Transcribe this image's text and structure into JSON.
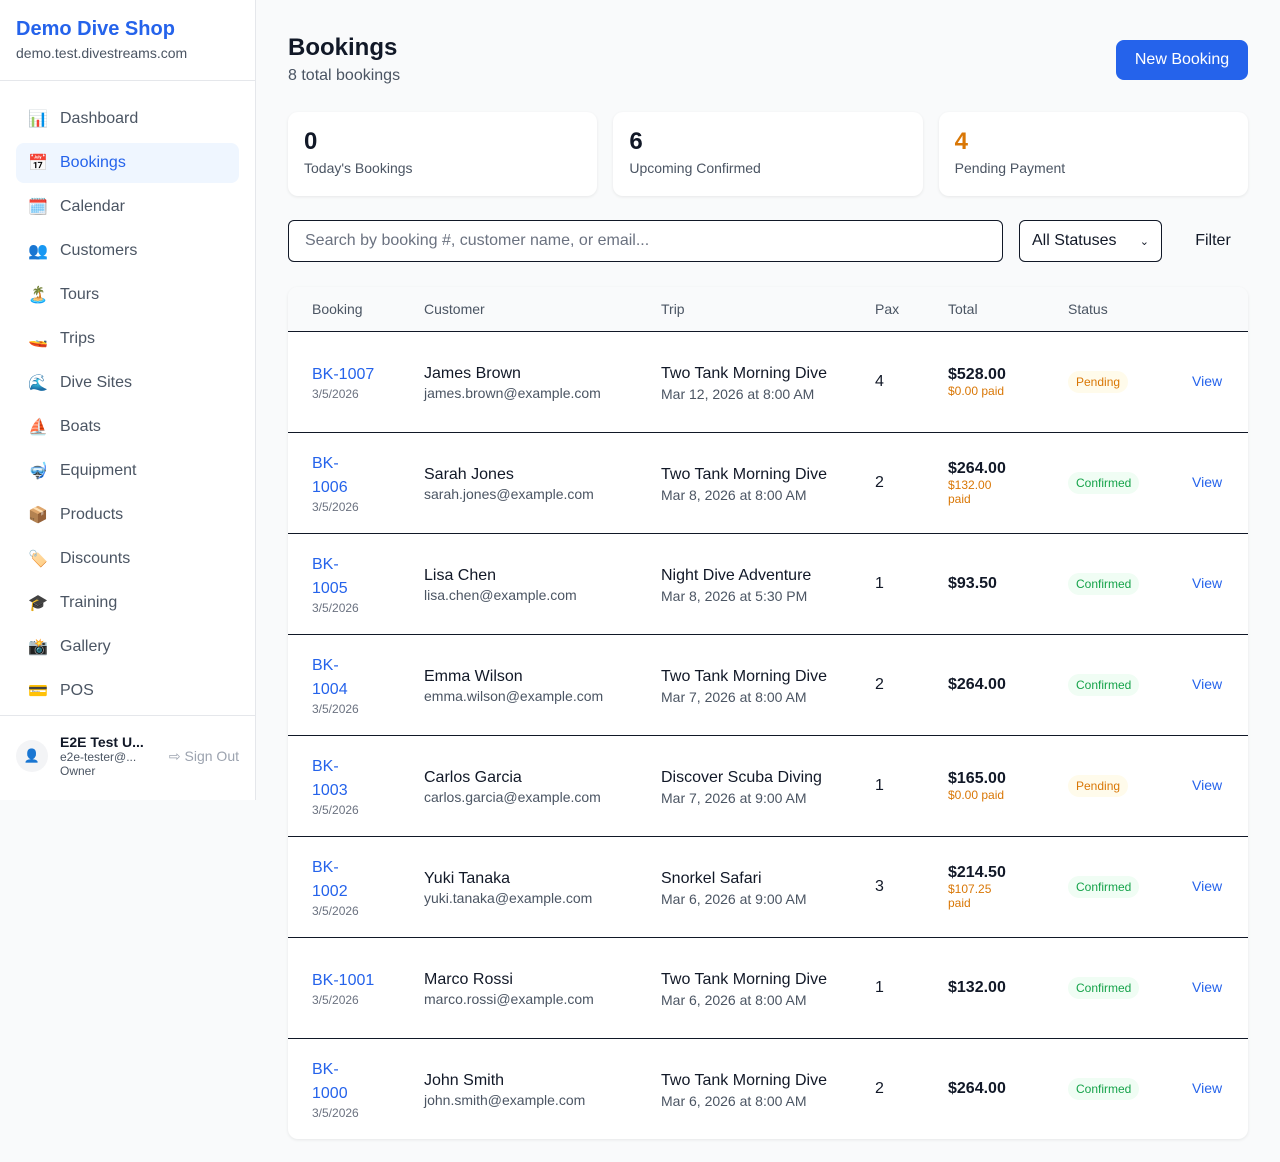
{
  "sidebar": {
    "brand": "Demo Dive Shop",
    "domain": "demo.test.divestreams.com",
    "items": [
      {
        "icon": "📊",
        "label": "Dashboard"
      },
      {
        "icon": "📅",
        "label": "Bookings",
        "active": true
      },
      {
        "icon": "🗓️",
        "label": "Calendar"
      },
      {
        "icon": "👥",
        "label": "Customers"
      },
      {
        "icon": "🏝️",
        "label": "Tours"
      },
      {
        "icon": "🚤",
        "label": "Trips"
      },
      {
        "icon": "🌊",
        "label": "Dive Sites"
      },
      {
        "icon": "⛵",
        "label": "Boats"
      },
      {
        "icon": "🤿",
        "label": "Equipment"
      },
      {
        "icon": "📦",
        "label": "Products"
      },
      {
        "icon": "🏷️",
        "label": "Discounts"
      },
      {
        "icon": "🎓",
        "label": "Training"
      },
      {
        "icon": "📸",
        "label": "Gallery"
      },
      {
        "icon": "💳",
        "label": "POS"
      }
    ],
    "user": {
      "name": "E2E Test U...",
      "email": "e2e-tester@...",
      "role": "Owner",
      "signout": "Sign Out"
    }
  },
  "header": {
    "title": "Bookings",
    "subtitle": "8 total bookings",
    "new_button": "New Booking"
  },
  "stats": [
    {
      "value": "0",
      "label": "Today's Bookings"
    },
    {
      "value": "6",
      "label": "Upcoming Confirmed"
    },
    {
      "value": "4",
      "label": "Pending Payment",
      "color": "#d97706"
    }
  ],
  "filters": {
    "search_placeholder": "Search by booking #, customer name, or email...",
    "status_selected": "All Statuses",
    "filter_button": "Filter"
  },
  "table": {
    "columns": [
      "Booking",
      "Customer",
      "Trip",
      "Pax",
      "Total",
      "Status",
      ""
    ],
    "rows": [
      {
        "id": "BK-1007",
        "date": "3/5/2026",
        "name": "James Brown",
        "email": "james.brown@example.com",
        "trip": "Two Tank Morning Dive",
        "trip_date": "Mar 12, 2026 at 8:00 AM",
        "pax": "4",
        "total": "$528.00",
        "paid": "$0.00 paid",
        "status": "Pending",
        "action": "View"
      },
      {
        "id": "BK-1006",
        "date": "3/5/2026",
        "name": "Sarah Jones",
        "email": "sarah.jones@example.com",
        "trip": "Two Tank Morning Dive",
        "trip_date": "Mar 8, 2026 at 8:00 AM",
        "pax": "2",
        "total": "$264.00",
        "paid": "$132.00 paid",
        "status": "Confirmed",
        "action": "View"
      },
      {
        "id": "BK-1005",
        "date": "3/5/2026",
        "name": "Lisa Chen",
        "email": "lisa.chen@example.com",
        "trip": "Night Dive Adventure",
        "trip_date": "Mar 8, 2026 at 5:30 PM",
        "pax": "1",
        "total": "$93.50",
        "paid": "",
        "status": "Confirmed",
        "action": "View"
      },
      {
        "id": "BK-1004",
        "date": "3/5/2026",
        "name": "Emma Wilson",
        "email": "emma.wilson@example.com",
        "trip": "Two Tank Morning Dive",
        "trip_date": "Mar 7, 2026 at 8:00 AM",
        "pax": "2",
        "total": "$264.00",
        "paid": "",
        "status": "Confirmed",
        "action": "View"
      },
      {
        "id": "BK-1003",
        "date": "3/5/2026",
        "name": "Carlos Garcia",
        "email": "carlos.garcia@example.com",
        "trip": "Discover Scuba Diving",
        "trip_date": "Mar 7, 2026 at 9:00 AM",
        "pax": "1",
        "total": "$165.00",
        "paid": "$0.00 paid",
        "status": "Pending",
        "action": "View"
      },
      {
        "id": "BK-1002",
        "date": "3/5/2026",
        "name": "Yuki Tanaka",
        "email": "yuki.tanaka@example.com",
        "trip": "Snorkel Safari",
        "trip_date": "Mar 6, 2026 at 9:00 AM",
        "pax": "3",
        "total": "$214.50",
        "paid": "$107.25 paid",
        "status": "Confirmed",
        "action": "View"
      },
      {
        "id": "BK-1001",
        "date": "3/5/2026",
        "name": "Marco Rossi",
        "email": "marco.rossi@example.com",
        "trip": "Two Tank Morning Dive",
        "trip_date": "Mar 6, 2026 at 8:00 AM",
        "pax": "1",
        "total": "$132.00",
        "paid": "",
        "status": "Confirmed",
        "action": "View"
      },
      {
        "id": "BK-1000",
        "date": "3/5/2026",
        "name": "John Smith",
        "email": "john.smith@example.com",
        "trip": "Two Tank Morning Dive",
        "trip_date": "Mar 6, 2026 at 8:00 AM",
        "pax": "2",
        "total": "$264.00",
        "paid": "",
        "status": "Confirmed",
        "action": "View"
      }
    ]
  }
}
